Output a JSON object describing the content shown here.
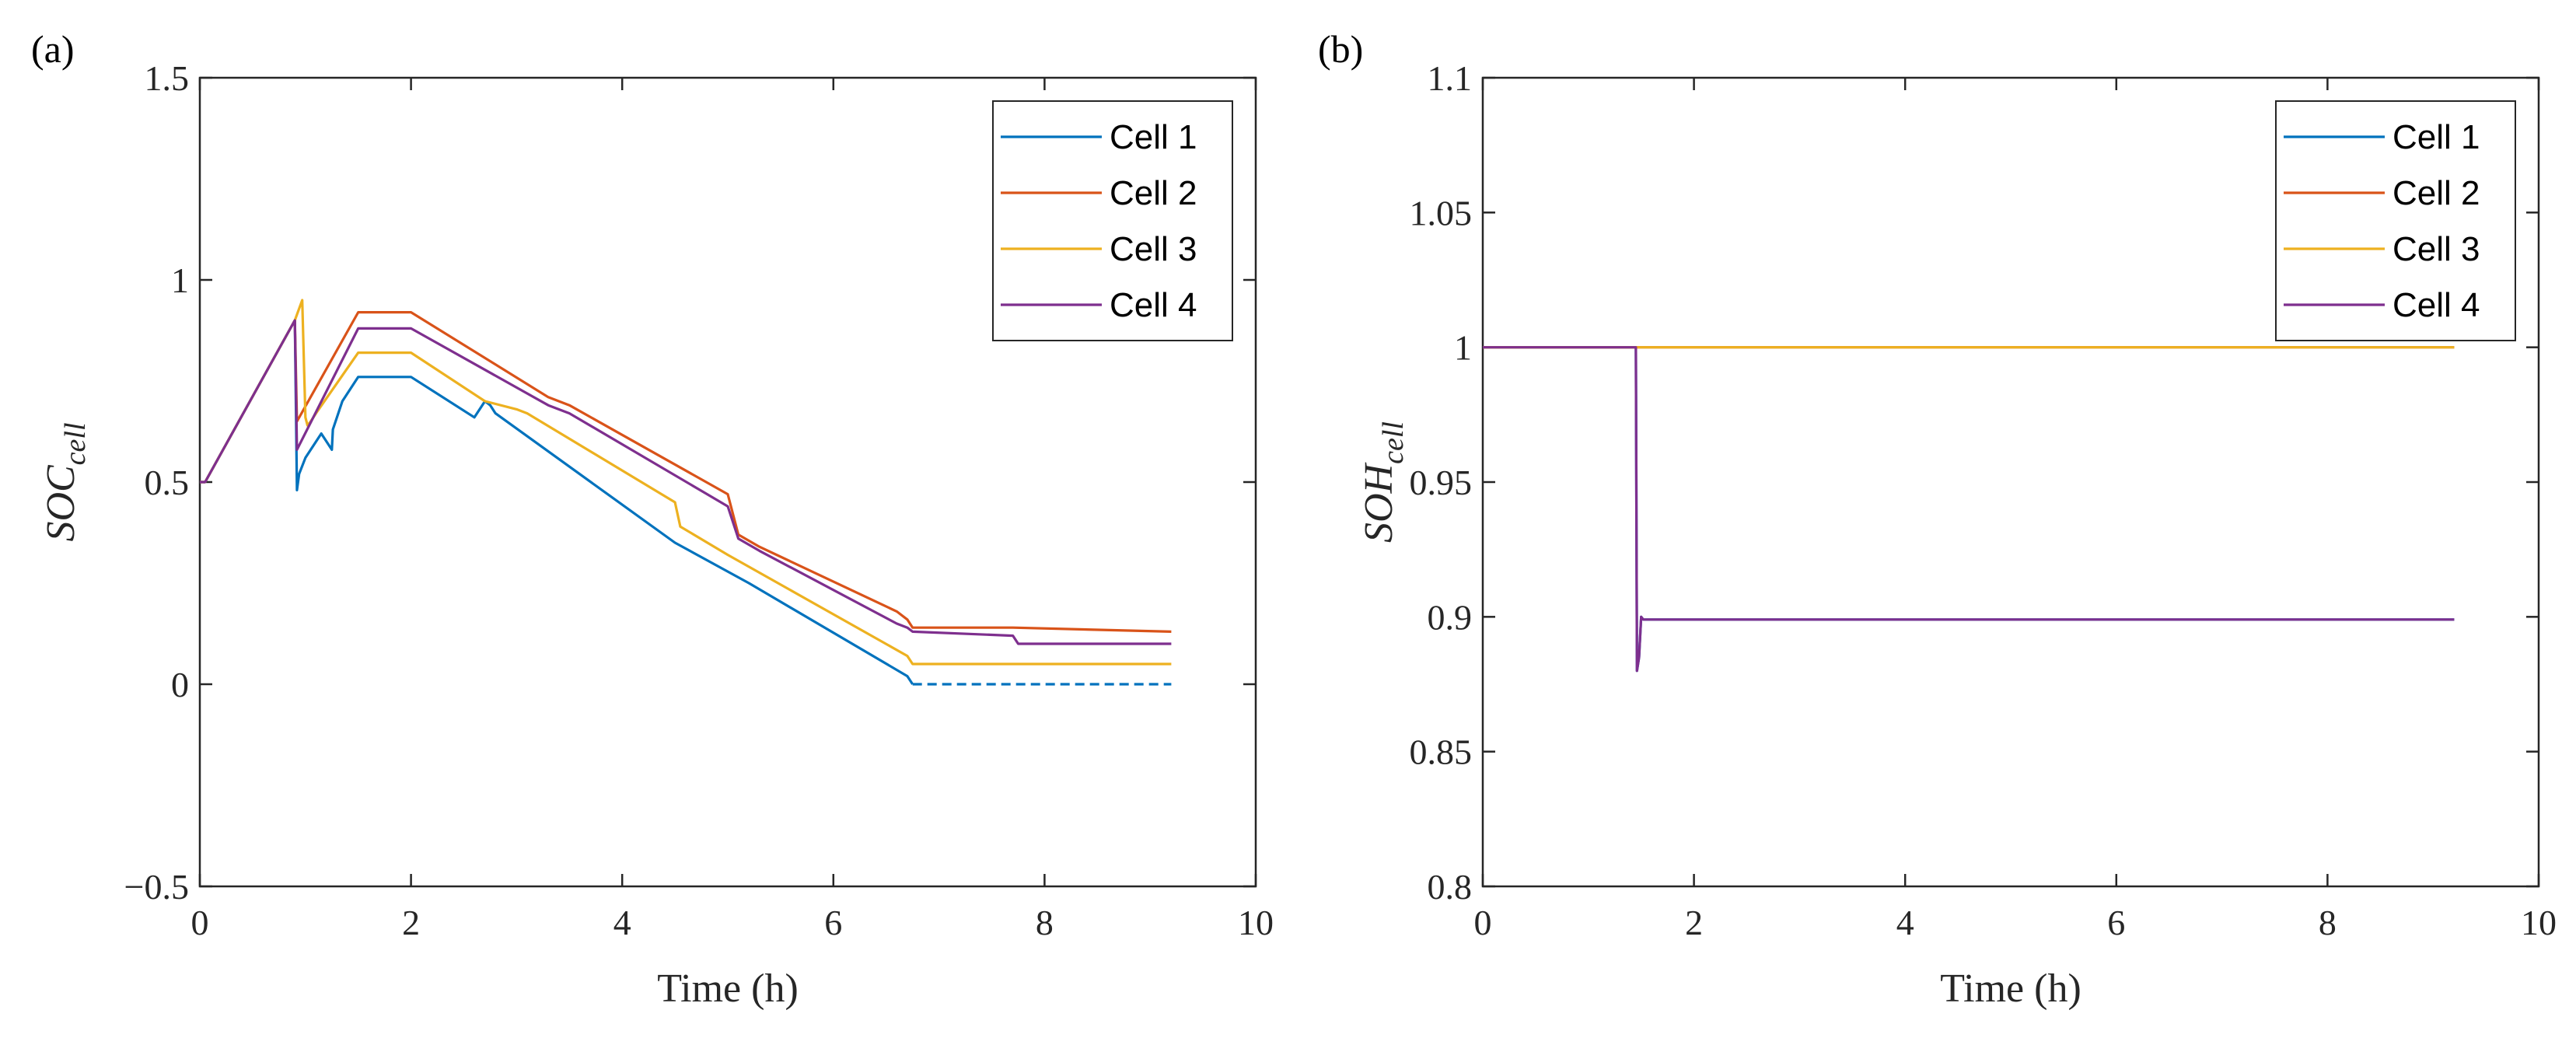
{
  "chart_data": [
    {
      "type": "line",
      "panel_label": "(a)",
      "xlabel": "Time (h)",
      "ylabel_main": "SOC",
      "ylabel_sub": "cell",
      "xlim": [
        0,
        10
      ],
      "ylim": [
        -0.5,
        1.5
      ],
      "xticks": [
        0,
        2,
        4,
        6,
        8,
        10
      ],
      "yticks": [
        -0.5,
        0,
        0.5,
        1,
        1.5
      ],
      "xtick_labels": [
        "0",
        "2",
        "4",
        "6",
        "8",
        "10"
      ],
      "ytick_labels": [
        "−0.5",
        "0",
        "0.5",
        "1",
        "1.5"
      ],
      "legend_position": "top-right",
      "series": [
        {
          "name": "Cell 1",
          "color": "#0072BD",
          "x": [
            0,
            0.05,
            0.9,
            0.92,
            0.94,
            1.0,
            1.1,
            1.15,
            1.25,
            1.26,
            1.35,
            1.5,
            2.0,
            2.6,
            2.7,
            2.75,
            2.8,
            4.5,
            5.2,
            6.7,
            6.75
          ],
          "y": [
            0.5,
            0.5,
            0.9,
            0.48,
            0.52,
            0.56,
            0.6,
            0.62,
            0.58,
            0.63,
            0.7,
            0.76,
            0.76,
            0.66,
            0.7,
            0.69,
            0.67,
            0.35,
            0.25,
            0.02,
            0.0
          ]
        },
        {
          "name": "Cell 1 (dashed)",
          "color": "#0072BD",
          "dashed": true,
          "legend": false,
          "x": [
            6.75,
            9.2
          ],
          "y": [
            0.0,
            0.0
          ]
        },
        {
          "name": "Cell 2",
          "color": "#D95319",
          "x": [
            0,
            0.05,
            0.9,
            0.92,
            1.5,
            2.0,
            3.3,
            3.5,
            5.0,
            5.1,
            5.3,
            6.6,
            6.7,
            6.75,
            7.7,
            9.2
          ],
          "y": [
            0.5,
            0.5,
            0.9,
            0.65,
            0.92,
            0.92,
            0.71,
            0.69,
            0.47,
            0.37,
            0.34,
            0.18,
            0.16,
            0.14,
            0.14,
            0.13
          ]
        },
        {
          "name": "Cell 3",
          "color": "#EDB120",
          "x": [
            0,
            0.05,
            0.9,
            0.97,
            1.0,
            1.02,
            1.05,
            1.1,
            1.5,
            2.0,
            2.7,
            3.0,
            3.1,
            4.5,
            4.55,
            5.0,
            6.7,
            6.75,
            9.2
          ],
          "y": [
            0.5,
            0.5,
            0.9,
            0.95,
            0.66,
            0.64,
            0.65,
            0.67,
            0.82,
            0.82,
            0.7,
            0.68,
            0.67,
            0.45,
            0.39,
            0.32,
            0.07,
            0.05,
            0.05
          ]
        },
        {
          "name": "Cell 4",
          "color": "#7E2F8E",
          "x": [
            0,
            0.05,
            0.9,
            0.92,
            1.5,
            2.0,
            3.3,
            3.5,
            5.0,
            5.1,
            5.3,
            6.6,
            6.7,
            6.75,
            7.7,
            7.75,
            9.2
          ],
          "y": [
            0.5,
            0.5,
            0.9,
            0.58,
            0.88,
            0.88,
            0.69,
            0.67,
            0.44,
            0.36,
            0.33,
            0.15,
            0.14,
            0.13,
            0.12,
            0.1,
            0.1
          ]
        }
      ]
    },
    {
      "type": "line",
      "panel_label": "(b)",
      "xlabel": "Time (h)",
      "ylabel_main": "SOH",
      "ylabel_sub": "cell",
      "xlim": [
        0,
        10
      ],
      "ylim": [
        0.8,
        1.1
      ],
      "xticks": [
        0,
        2,
        4,
        6,
        8,
        10
      ],
      "yticks": [
        0.8,
        0.85,
        0.9,
        0.95,
        1,
        1.05,
        1.1
      ],
      "xtick_labels": [
        "0",
        "2",
        "4",
        "6",
        "8",
        "10"
      ],
      "ytick_labels": [
        "0.8",
        "0.85",
        "0.9",
        "0.95",
        "1",
        "1.05",
        "1.1"
      ],
      "legend_position": "top-right",
      "series": [
        {
          "name": "Cell 1",
          "color": "#0072BD",
          "x": [
            0,
            1.45,
            1.46,
            1.48,
            1.5,
            1.52,
            9.2
          ],
          "y": [
            1.0,
            1.0,
            0.88,
            0.885,
            0.9,
            0.899,
            0.899
          ]
        },
        {
          "name": "Cell 2",
          "color": "#D95319",
          "x": [
            0,
            9.2
          ],
          "y": [
            1.0,
            1.0
          ]
        },
        {
          "name": "Cell 3",
          "color": "#EDB120",
          "x": [
            0,
            9.2
          ],
          "y": [
            1.0,
            1.0
          ]
        },
        {
          "name": "Cell 4",
          "color": "#7E2F8E",
          "x": [
            0,
            1.45,
            1.46,
            1.48,
            1.5,
            1.52,
            9.2
          ],
          "y": [
            1.0,
            1.0,
            0.88,
            0.885,
            0.9,
            0.899,
            0.899
          ]
        }
      ]
    }
  ]
}
